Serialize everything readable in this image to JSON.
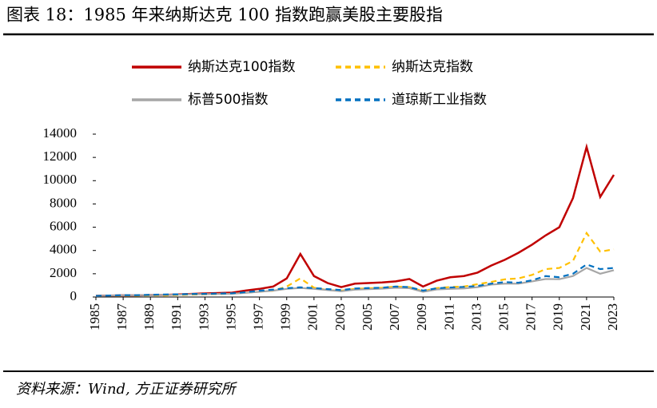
{
  "chart_data": {
    "type": "line",
    "title": "图表 18：1985 年来纳斯达克 100 指数跑赢美股主要股指",
    "source": "资料来源：Wind, 方正证券研究所",
    "x": [
      1985,
      1986,
      1987,
      1988,
      1989,
      1990,
      1991,
      1992,
      1993,
      1994,
      1995,
      1996,
      1997,
      1998,
      1999,
      2000,
      2001,
      2002,
      2003,
      2004,
      2005,
      2006,
      2007,
      2008,
      2009,
      2010,
      2011,
      2012,
      2013,
      2014,
      2015,
      2016,
      2017,
      2018,
      2019,
      2020,
      2021,
      2022,
      2023
    ],
    "xlim": [
      1985,
      2023
    ],
    "xticks": [
      1985,
      1987,
      1989,
      1991,
      1993,
      1995,
      1997,
      1999,
      2001,
      2003,
      2005,
      2007,
      2009,
      2011,
      2013,
      2015,
      2017,
      2019,
      2021,
      2023
    ],
    "ylim": [
      0,
      14000
    ],
    "yticks": [
      0,
      2000,
      4000,
      6000,
      8000,
      10000,
      12000,
      14000
    ],
    "series": [
      {
        "name": "纳斯达克100指数",
        "color": "#c00000",
        "dash": "solid",
        "values": [
          100,
          120,
          150,
          140,
          170,
          180,
          220,
          270,
          310,
          340,
          380,
          560,
          700,
          900,
          1600,
          3700,
          1800,
          1200,
          850,
          1150,
          1200,
          1250,
          1350,
          1550,
          900,
          1400,
          1700,
          1800,
          2100,
          2700,
          3200,
          3800,
          4500,
          5300,
          6000,
          8500,
          12900,
          8600,
          10500
        ]
      },
      {
        "name": "纳斯达克指数",
        "color": "#ffc000",
        "dash": "dashed",
        "values": [
          100,
          110,
          130,
          120,
          140,
          130,
          170,
          200,
          230,
          250,
          300,
          370,
          460,
          540,
          900,
          1600,
          800,
          600,
          550,
          700,
          750,
          800,
          900,
          850,
          500,
          770,
          860,
          900,
          1100,
          1300,
          1520,
          1600,
          1900,
          2400,
          2500,
          3100,
          5500,
          3900,
          4100
        ]
      },
      {
        "name": "标普500指数",
        "color": "#a6a6a6",
        "dash": "solid",
        "values": [
          100,
          120,
          150,
          150,
          170,
          190,
          200,
          240,
          250,
          260,
          280,
          360,
          450,
          550,
          700,
          780,
          700,
          600,
          500,
          630,
          680,
          720,
          800,
          760,
          450,
          650,
          700,
          740,
          850,
          1070,
          1150,
          1150,
          1340,
          1550,
          1530,
          1800,
          2500,
          2000,
          2300
        ]
      },
      {
        "name": "道琼斯工业指数",
        "color": "#0070c0",
        "dash": "dashed",
        "values": [
          100,
          130,
          160,
          160,
          190,
          220,
          230,
          260,
          270,
          300,
          320,
          420,
          540,
          640,
          760,
          830,
          770,
          680,
          600,
          730,
          770,
          800,
          900,
          850,
          550,
          750,
          820,
          870,
          950,
          1150,
          1280,
          1230,
          1440,
          1800,
          1700,
          2000,
          2800,
          2400,
          2500
        ]
      }
    ]
  }
}
